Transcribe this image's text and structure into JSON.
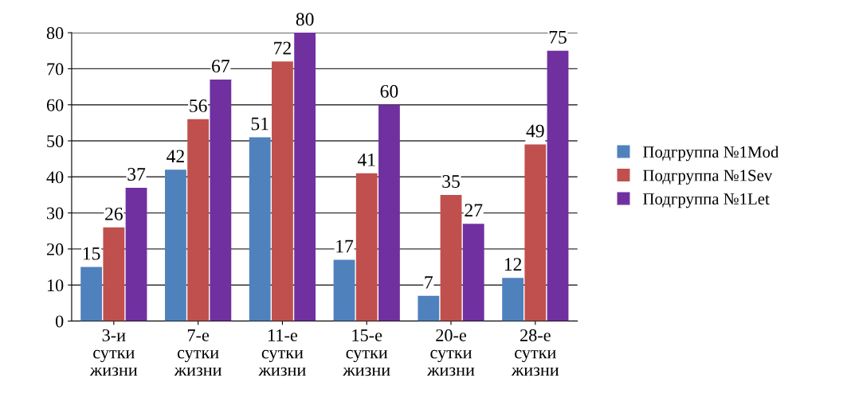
{
  "chart_data": {
    "type": "bar",
    "categories": [
      "3-и\nсутки\nжизни",
      "7-е\nсутки\nжизни",
      "11-е\nсутки\nжизни",
      "15-е\nсутки\nжизни",
      "20-е\nсутки\nжизни",
      "28-е\nсутки\nжизни"
    ],
    "series": [
      {
        "name": "Подгруппа №1Mod",
        "color": "#4f81bd",
        "values": [
          15,
          42,
          51,
          17,
          7,
          12
        ]
      },
      {
        "name": "Подгруппа №1Sev",
        "color": "#c0504d",
        "values": [
          26,
          56,
          72,
          41,
          35,
          49
        ]
      },
      {
        "name": "Подгруппа №1Let",
        "color": "#7030a0",
        "values": [
          37,
          67,
          80,
          60,
          27,
          75
        ]
      }
    ],
    "ylim": [
      0,
      80
    ],
    "yticks": [
      0,
      10,
      20,
      30,
      40,
      50,
      60,
      70,
      80
    ],
    "grid": "y",
    "legend": "right",
    "data_labels": true
  }
}
